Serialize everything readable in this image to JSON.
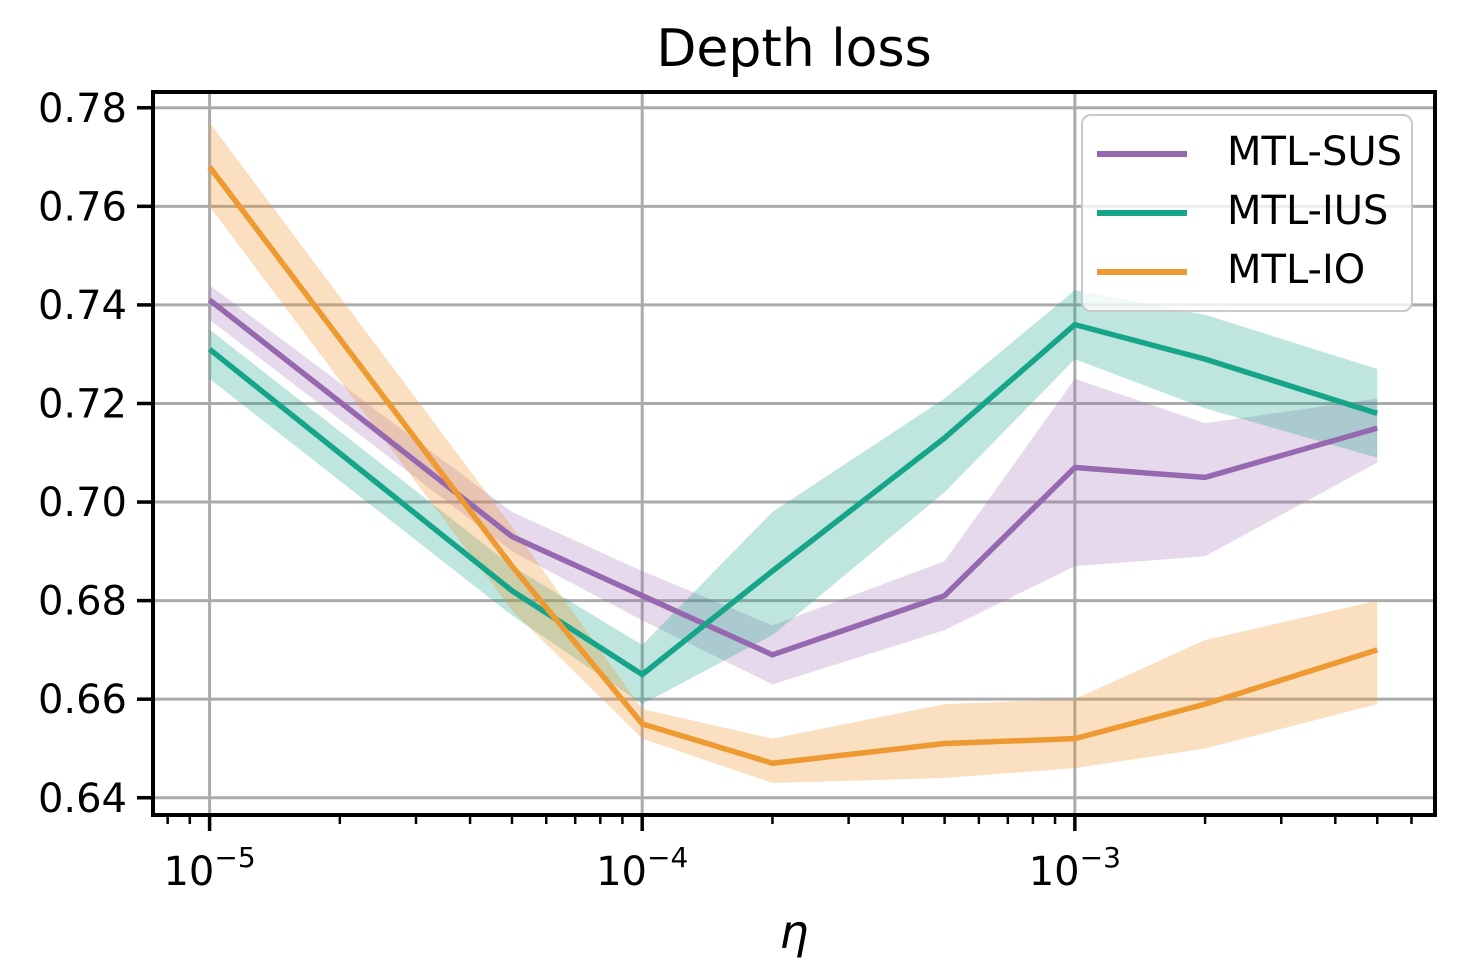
{
  "chart_data": {
    "type": "line",
    "title": "Depth loss",
    "xlabel": "η",
    "ylabel": "",
    "xscale": "log",
    "grid": true,
    "legend_position": "upper right",
    "xlim_log10": [
      -5.1308,
      -2.1675
    ],
    "ylim": [
      0.6365,
      0.7832
    ],
    "y_ticks": [
      0.64,
      0.66,
      0.68,
      0.7,
      0.72,
      0.74,
      0.76,
      0.78
    ],
    "x_major_ticks": [
      1e-05,
      0.0001,
      0.001
    ],
    "x_tick_labels": [
      "10^−5",
      "10^−4",
      "10^−3"
    ],
    "x_minor_ticks": [
      8e-06,
      9e-06,
      2e-05,
      3e-05,
      4e-05,
      5e-05,
      6e-05,
      7e-05,
      8e-05,
      9e-05,
      0.0002,
      0.0003,
      0.0004,
      0.0005,
      0.0006,
      0.0007,
      0.0008,
      0.0009,
      0.002,
      0.003,
      0.004,
      0.005,
      0.006
    ],
    "x": [
      1e-05,
      5e-05,
      0.0001,
      0.0002,
      0.0005,
      0.001,
      0.002,
      0.005
    ],
    "series": [
      {
        "name": "MTL-SUS",
        "color": "#9668b0",
        "band_alpha": 0.25,
        "values": [
          0.741,
          0.693,
          0.681,
          0.669,
          0.681,
          0.707,
          0.705,
          0.715
        ],
        "band_lower": [
          0.737,
          0.69,
          0.676,
          0.663,
          0.674,
          0.687,
          0.689,
          0.708
        ],
        "band_upper": [
          0.744,
          0.698,
          0.686,
          0.675,
          0.688,
          0.725,
          0.716,
          0.721
        ]
      },
      {
        "name": "MTL-IUS",
        "color": "#17a589",
        "band_alpha": 0.28,
        "values": [
          0.731,
          0.682,
          0.665,
          0.686,
          0.713,
          0.736,
          0.729,
          0.718
        ],
        "band_lower": [
          0.725,
          0.677,
          0.659,
          0.673,
          0.702,
          0.729,
          0.719,
          0.709
        ],
        "band_upper": [
          0.735,
          0.687,
          0.671,
          0.698,
          0.721,
          0.743,
          0.738,
          0.727
        ]
      },
      {
        "name": "MTL-IO",
        "color": "#ee9931",
        "band_alpha": 0.3,
        "values": [
          0.768,
          0.687,
          0.655,
          0.647,
          0.651,
          0.652,
          0.659,
          0.67
        ],
        "band_lower": [
          0.76,
          0.678,
          0.652,
          0.643,
          0.644,
          0.646,
          0.65,
          0.659
        ],
        "band_upper": [
          0.777,
          0.695,
          0.658,
          0.652,
          0.659,
          0.66,
          0.672,
          0.68
        ]
      }
    ],
    "colors": {
      "grid": "#ababab",
      "spine": "#000000",
      "text": "#000000",
      "legend_border": "#c9c9c9",
      "background": "#ffffff"
    }
  }
}
